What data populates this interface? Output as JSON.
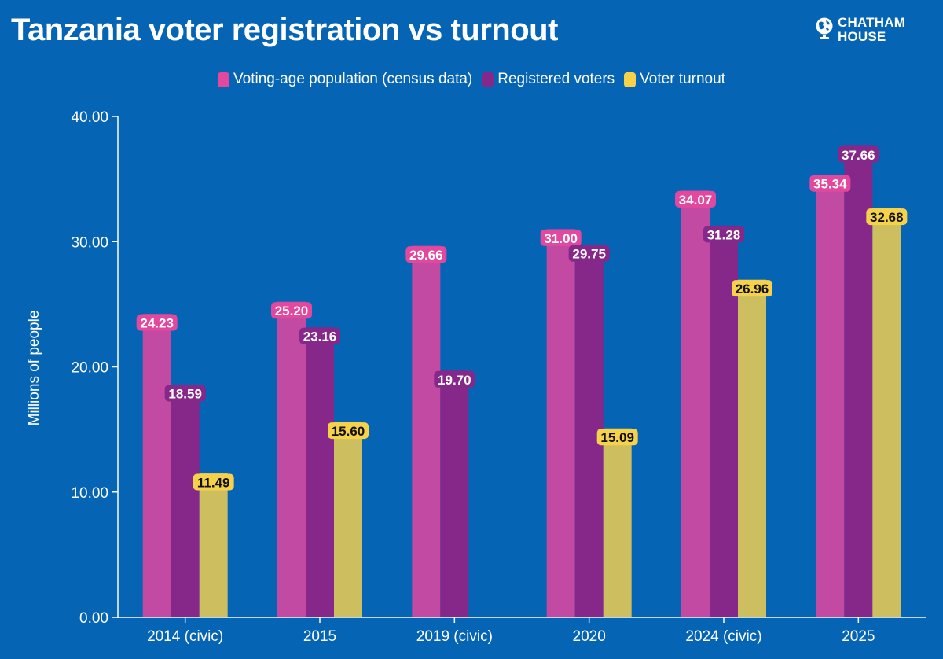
{
  "title": "Tanzania voter registration vs turnout",
  "logo": {
    "line1": "CHATHAM",
    "line2": "HOUSE",
    "icon": "globe-icon"
  },
  "colors": {
    "background": "#0565b4",
    "voting_age": "#c24aa2",
    "registered": "#85288a",
    "turnout": "#cdbf60",
    "label_voting_age": "#e2489e",
    "label_registered": "#85288a",
    "label_turnout": "#f5d24a"
  },
  "chart_data": {
    "type": "bar",
    "title": "Tanzania voter registration vs turnout",
    "xlabel": "",
    "ylabel": "Millions of people",
    "ylim": [
      0,
      40
    ],
    "yticks": [
      0,
      10,
      20,
      30,
      40
    ],
    "ytick_labels": [
      "0.00",
      "10.00",
      "20.00",
      "30.00",
      "40.00"
    ],
    "grid": false,
    "legend_position": "top-center",
    "categories": [
      "2014 (civic)",
      "2015",
      "2019 (civic)",
      "2020",
      "2024 (civic)",
      "2025"
    ],
    "series": [
      {
        "name": "Voting-age population (census data)",
        "values": [
          24.23,
          25.2,
          29.66,
          31.0,
          34.07,
          35.34
        ],
        "labels": [
          "24.23",
          "25.20",
          "29.66",
          "31.00",
          "34.07",
          "35.34"
        ]
      },
      {
        "name": "Registered voters",
        "values": [
          18.59,
          23.16,
          19.7,
          29.75,
          31.28,
          37.66
        ],
        "labels": [
          "18.59",
          "23.16",
          "19.70",
          "29.75",
          "31.28",
          "37.66"
        ]
      },
      {
        "name": "Voter turnout",
        "values": [
          11.49,
          15.6,
          null,
          15.09,
          26.96,
          32.68
        ],
        "labels": [
          "11.49",
          "15.60",
          null,
          "15.09",
          "26.96",
          "32.68"
        ]
      }
    ]
  }
}
